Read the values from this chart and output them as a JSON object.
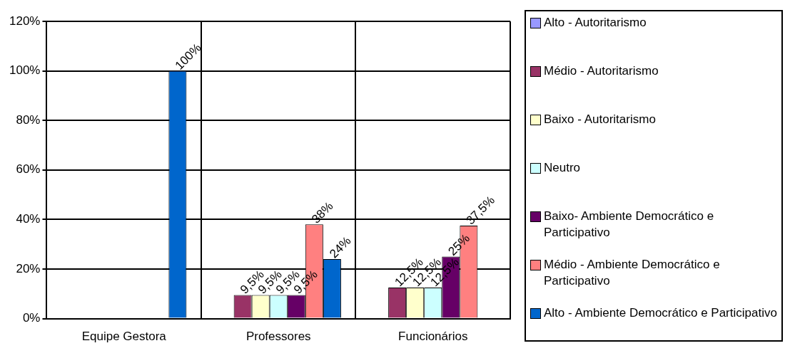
{
  "chart_data": {
    "type": "bar",
    "categories": [
      "Equipe Gestora",
      "Professores",
      "Funcionários"
    ],
    "series": [
      {
        "name": "Alto - Autoritarismo",
        "color": "#9999ff",
        "values": [
          null,
          null,
          null
        ]
      },
      {
        "name": "Médio - Autoritarismo",
        "color": "#993366",
        "values": [
          null,
          9.5,
          12.5
        ],
        "value_labels": [
          null,
          "9,5%",
          "12,5%"
        ]
      },
      {
        "name": "Baixo - Autoritarismo",
        "color": "#ffffcc",
        "values": [
          null,
          9.5,
          12.5
        ],
        "value_labels": [
          null,
          "9,5%",
          "12,5%"
        ]
      },
      {
        "name": "Neutro",
        "color": "#ccffff",
        "values": [
          null,
          9.5,
          12.5
        ],
        "value_labels": [
          null,
          "9,5%",
          "12,5%"
        ]
      },
      {
        "name": "Baixo- Ambiente Democrático e Participativo",
        "color": "#660066",
        "values": [
          null,
          9.5,
          25
        ],
        "value_labels": [
          null,
          "9,5%",
          "25%"
        ]
      },
      {
        "name": "Médio - Ambiente Democrático e Participativo",
        "color": "#ff8080",
        "values": [
          null,
          38,
          37.5
        ],
        "value_labels": [
          null,
          "38%",
          "37,5%"
        ]
      },
      {
        "name": "Alto - Ambiente Democrático e Participativo",
        "color": "#0066cc",
        "values": [
          100,
          24,
          null
        ],
        "value_labels": [
          "100%",
          "24%",
          null
        ]
      }
    ],
    "ylim": [
      0,
      120
    ],
    "yticks": [
      {
        "value": 0,
        "label": "0%"
      },
      {
        "value": 20,
        "label": "20%"
      },
      {
        "value": 40,
        "label": "40%"
      },
      {
        "value": 60,
        "label": "60%"
      },
      {
        "value": 80,
        "label": "80%"
      },
      {
        "value": 100,
        "label": "100%"
      },
      {
        "value": 120,
        "label": "120%"
      }
    ],
    "grid": true,
    "legend": "right"
  }
}
